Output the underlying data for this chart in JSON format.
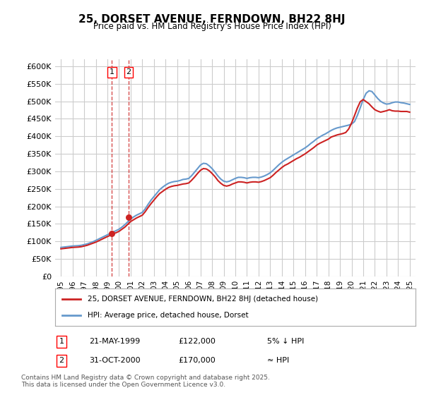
{
  "title": "25, DORSET AVENUE, FERNDOWN, BH22 8HJ",
  "subtitle": "Price paid vs. HM Land Registry's House Price Index (HPI)",
  "ylabel_ticks": [
    "£0",
    "£50K",
    "£100K",
    "£150K",
    "£200K",
    "£250K",
    "£300K",
    "£350K",
    "£400K",
    "£450K",
    "£500K",
    "£550K",
    "£600K"
  ],
  "ytick_values": [
    0,
    50000,
    100000,
    150000,
    200000,
    250000,
    300000,
    350000,
    400000,
    450000,
    500000,
    550000,
    600000
  ],
  "ylim": [
    0,
    620000
  ],
  "xlim_years": [
    1994.5,
    2025.5
  ],
  "x_tick_years": [
    1995,
    1996,
    1997,
    1998,
    1999,
    2000,
    2001,
    2002,
    2003,
    2004,
    2005,
    2006,
    2007,
    2008,
    2009,
    2010,
    2011,
    2012,
    2013,
    2014,
    2015,
    2016,
    2017,
    2018,
    2019,
    2020,
    2021,
    2022,
    2023,
    2024,
    2025
  ],
  "sale1": {
    "year": 1999.38,
    "price": 122000,
    "label": "1"
  },
  "sale2": {
    "year": 2000.83,
    "price": 170000,
    "label": "2"
  },
  "hpi_line_color": "#6699cc",
  "property_line_color": "#cc2222",
  "property_dot_color": "#cc2222",
  "legend_property": "25, DORSET AVENUE, FERNDOWN, BH22 8HJ (detached house)",
  "legend_hpi": "HPI: Average price, detached house, Dorset",
  "table_row1": [
    "1",
    "21-MAY-1999",
    "£122,000",
    "5% ↓ HPI"
  ],
  "table_row2": [
    "2",
    "31-OCT-2000",
    "£170,000",
    "≈ HPI"
  ],
  "footnote": "Contains HM Land Registry data © Crown copyright and database right 2025.\nThis data is licensed under the Open Government Licence v3.0.",
  "background_color": "#ffffff",
  "grid_color": "#cccccc",
  "hpi_years": [
    1995.0,
    1995.25,
    1995.5,
    1995.75,
    1996.0,
    1996.25,
    1996.5,
    1996.75,
    1997.0,
    1997.25,
    1997.5,
    1997.75,
    1998.0,
    1998.25,
    1998.5,
    1998.75,
    1999.0,
    1999.25,
    1999.5,
    1999.75,
    2000.0,
    2000.25,
    2000.5,
    2000.75,
    2001.0,
    2001.25,
    2001.5,
    2001.75,
    2002.0,
    2002.25,
    2002.5,
    2002.75,
    2003.0,
    2003.25,
    2003.5,
    2003.75,
    2004.0,
    2004.25,
    2004.5,
    2004.75,
    2005.0,
    2005.25,
    2005.5,
    2005.75,
    2006.0,
    2006.25,
    2006.5,
    2006.75,
    2007.0,
    2007.25,
    2007.5,
    2007.75,
    2008.0,
    2008.25,
    2008.5,
    2008.75,
    2009.0,
    2009.25,
    2009.5,
    2009.75,
    2010.0,
    2010.25,
    2010.5,
    2010.75,
    2011.0,
    2011.25,
    2011.5,
    2011.75,
    2012.0,
    2012.25,
    2012.5,
    2012.75,
    2013.0,
    2013.25,
    2013.5,
    2013.75,
    2014.0,
    2014.25,
    2014.5,
    2014.75,
    2015.0,
    2015.25,
    2015.5,
    2015.75,
    2016.0,
    2016.25,
    2016.5,
    2016.75,
    2017.0,
    2017.25,
    2017.5,
    2017.75,
    2018.0,
    2018.25,
    2018.5,
    2018.75,
    2019.0,
    2019.25,
    2019.5,
    2019.75,
    2020.0,
    2020.25,
    2020.5,
    2020.75,
    2021.0,
    2021.25,
    2021.5,
    2021.75,
    2022.0,
    2022.25,
    2022.5,
    2022.75,
    2023.0,
    2023.25,
    2023.5,
    2023.75,
    2024.0,
    2024.25,
    2024.5,
    2024.75,
    2025.0
  ],
  "hpi_values": [
    83000,
    84000,
    85000,
    86000,
    87000,
    87500,
    88000,
    89000,
    91000,
    93000,
    96000,
    99000,
    103000,
    107000,
    111000,
    115000,
    119000,
    123000,
    127000,
    131000,
    135000,
    141000,
    148000,
    156000,
    164000,
    170000,
    175000,
    179000,
    183000,
    193000,
    206000,
    218000,
    228000,
    238000,
    248000,
    255000,
    261000,
    266000,
    269000,
    271000,
    272000,
    274000,
    277000,
    278000,
    280000,
    288000,
    298000,
    308000,
    318000,
    323000,
    322000,
    316000,
    308000,
    298000,
    287000,
    278000,
    272000,
    270000,
    272000,
    276000,
    280000,
    283000,
    283000,
    282000,
    280000,
    282000,
    283000,
    283000,
    282000,
    284000,
    287000,
    291000,
    296000,
    303000,
    311000,
    319000,
    326000,
    332000,
    337000,
    342000,
    347000,
    352000,
    357000,
    362000,
    367000,
    373000,
    380000,
    386000,
    393000,
    398000,
    403000,
    407000,
    412000,
    417000,
    421000,
    424000,
    426000,
    428000,
    430000,
    432000,
    435000,
    442000,
    460000,
    482000,
    505000,
    523000,
    530000,
    528000,
    518000,
    508000,
    500000,
    495000,
    492000,
    493000,
    496000,
    498000,
    498000,
    496000,
    495000,
    493000,
    491000
  ],
  "prop_years": [
    1995.0,
    1995.25,
    1995.5,
    1995.75,
    1996.0,
    1996.25,
    1996.5,
    1996.75,
    1997.0,
    1997.25,
    1997.5,
    1997.75,
    1998.0,
    1998.25,
    1998.5,
    1998.75,
    1999.0,
    1999.25,
    1999.5,
    1999.75,
    2000.0,
    2000.25,
    2000.5,
    2000.75,
    2001.0,
    2001.25,
    2001.5,
    2001.75,
    2002.0,
    2002.25,
    2002.5,
    2002.75,
    2003.0,
    2003.25,
    2003.5,
    2003.75,
    2004.0,
    2004.25,
    2004.5,
    2004.75,
    2005.0,
    2005.25,
    2005.5,
    2005.75,
    2006.0,
    2006.25,
    2006.5,
    2006.75,
    2007.0,
    2007.25,
    2007.5,
    2007.75,
    2008.0,
    2008.25,
    2008.5,
    2008.75,
    2009.0,
    2009.25,
    2009.5,
    2009.75,
    2010.0,
    2010.25,
    2010.5,
    2010.75,
    2011.0,
    2011.25,
    2011.5,
    2011.75,
    2012.0,
    2012.25,
    2012.5,
    2012.75,
    2013.0,
    2013.25,
    2013.5,
    2013.75,
    2014.0,
    2014.25,
    2014.5,
    2014.75,
    2015.0,
    2015.25,
    2015.5,
    2015.75,
    2016.0,
    2016.25,
    2016.5,
    2016.75,
    2017.0,
    2017.25,
    2017.5,
    2017.75,
    2018.0,
    2018.25,
    2018.5,
    2018.75,
    2019.0,
    2019.25,
    2019.5,
    2019.75,
    2020.0,
    2020.25,
    2020.5,
    2020.75,
    2021.0,
    2021.25,
    2021.5,
    2021.75,
    2022.0,
    2022.25,
    2022.5,
    2022.75,
    2023.0,
    2023.25,
    2023.5,
    2023.75,
    2024.0,
    2024.25,
    2024.5,
    2024.75,
    2025.0
  ],
  "prop_values": [
    79000,
    80000,
    81000,
    82000,
    83000,
    83500,
    84000,
    85000,
    87000,
    89000,
    92000,
    95000,
    98000,
    102000,
    106000,
    110000,
    114000,
    117500,
    122000,
    125000,
    129000,
    135000,
    141000,
    149000,
    157000,
    162000,
    167000,
    171000,
    175000,
    185000,
    197000,
    208000,
    218000,
    228000,
    237000,
    243000,
    249000,
    254000,
    257000,
    259000,
    260000,
    262000,
    264000,
    265000,
    267000,
    275000,
    284000,
    294000,
    303000,
    308000,
    307000,
    302000,
    294000,
    285000,
    274000,
    266000,
    260000,
    258000,
    260000,
    264000,
    267000,
    270000,
    270000,
    269000,
    267000,
    269000,
    270000,
    270000,
    269000,
    271000,
    274000,
    278000,
    282000,
    289000,
    297000,
    304000,
    311000,
    317000,
    321000,
    326000,
    331000,
    336000,
    340000,
    345000,
    350000,
    356000,
    362000,
    368000,
    375000,
    380000,
    384000,
    388000,
    392000,
    398000,
    401000,
    404000,
    406000,
    408000,
    411000,
    421000,
    438000,
    459000,
    481000,
    499000,
    505000,
    499000,
    493000,
    484000,
    476000,
    472000,
    469000,
    471000,
    473000,
    476000,
    473000,
    472000,
    472000,
    471000,
    471000,
    471000,
    469000
  ]
}
